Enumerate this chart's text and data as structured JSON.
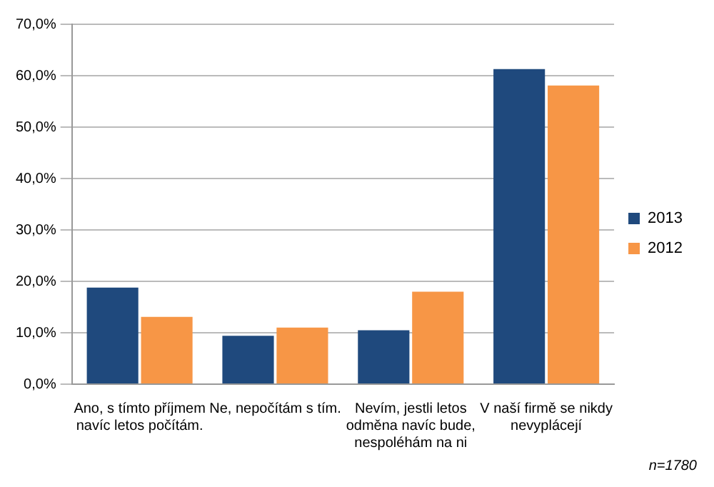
{
  "chart_data": {
    "type": "bar",
    "categories": [
      "Ano, s tímto příjmem navíc letos počítám.",
      "Ne, nepočítám s tím.",
      "Nevím, jestli letos odměna navíc bude, nespoléhám na ni",
      "V naší firmě se nikdy nevyplácejí"
    ],
    "series": [
      {
        "name": "2013",
        "color": "#1f497d",
        "values": [
          18.8,
          9.4,
          10.5,
          61.3
        ]
      },
      {
        "name": "2012",
        "color": "#f79646",
        "values": [
          13.1,
          11.0,
          18.0,
          58.1
        ]
      }
    ],
    "ylim": [
      0,
      70
    ],
    "yticks": [
      {
        "value": 0,
        "label": "0,0%"
      },
      {
        "value": 10,
        "label": "10,0%"
      },
      {
        "value": 20,
        "label": "20,0%"
      },
      {
        "value": 30,
        "label": "30,0%"
      },
      {
        "value": 40,
        "label": "40,0%"
      },
      {
        "value": 50,
        "label": "50,0%"
      },
      {
        "value": 60,
        "label": "60,0%"
      },
      {
        "value": 70,
        "label": "70,0%"
      }
    ],
    "grid": "y",
    "legend": "right",
    "annotations": [
      "n=1780"
    ]
  }
}
